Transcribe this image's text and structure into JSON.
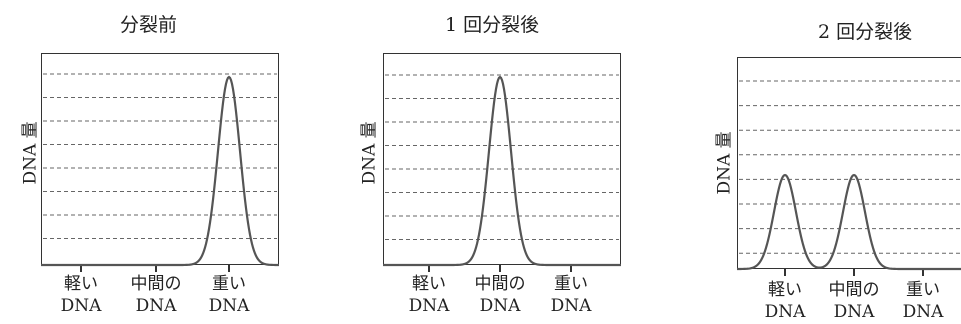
{
  "chart_data": [
    {
      "type": "line",
      "title": "分裂前",
      "ylabel": "DNA 量",
      "categories": [
        {
          "line1": "軽い",
          "line2": "DNA"
        },
        {
          "line1": "中間の",
          "line2": "DNA"
        },
        {
          "line1": "重い",
          "line2": "DNA"
        }
      ],
      "peaks": [
        {
          "category_index": 2,
          "relative_height": 1.0
        }
      ],
      "grid": "dashed-horizontal",
      "grid_lines": 8
    },
    {
      "type": "line",
      "title": "1 回分裂後",
      "ylabel": "DNA 量",
      "categories": [
        {
          "line1": "軽い",
          "line2": "DNA"
        },
        {
          "line1": "中間の",
          "line2": "DNA"
        },
        {
          "line1": "重い",
          "line2": "DNA"
        }
      ],
      "peaks": [
        {
          "category_index": 1,
          "relative_height": 1.0
        }
      ],
      "grid": "dashed-horizontal",
      "grid_lines": 8
    },
    {
      "type": "line",
      "title": "2 回分裂後",
      "ylabel": "DNA 量",
      "categories": [
        {
          "line1": "軽い",
          "line2": "DNA"
        },
        {
          "line1": "中間の",
          "line2": "DNA"
        },
        {
          "line1": "重い",
          "line2": "DNA"
        }
      ],
      "peaks": [
        {
          "category_index": 0,
          "relative_height": 0.5
        },
        {
          "category_index": 1,
          "relative_height": 0.5
        }
      ],
      "grid": "dashed-horizontal",
      "grid_lines": 8
    }
  ]
}
